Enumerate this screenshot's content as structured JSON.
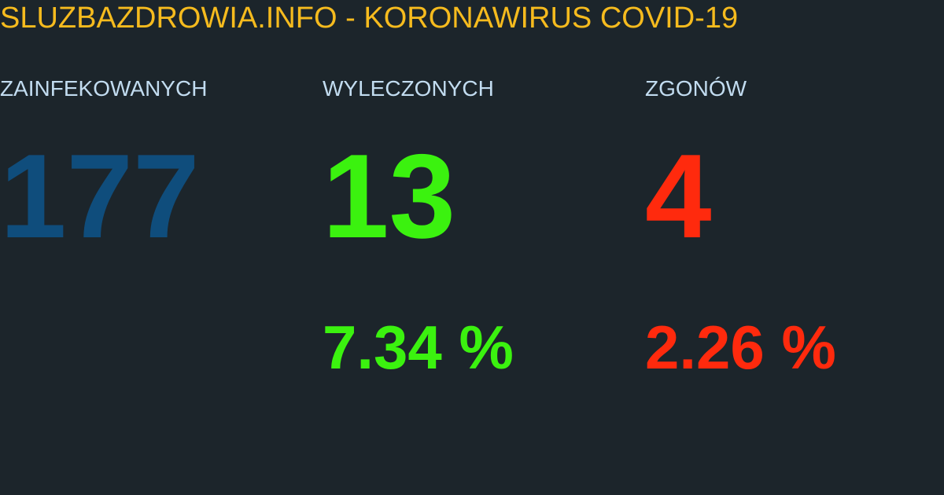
{
  "header": {
    "title": "SLUZBAZDROWIA.INFO - KORONAWIRUS COVID-19"
  },
  "stats": {
    "infected": {
      "label": "ZAINFEKOWANYCH",
      "count": "177",
      "color": "#0f4d7c"
    },
    "recovered": {
      "label": "WYLECZONYCH",
      "count": "13",
      "percent": "7.34 %",
      "color": "#3bf20f"
    },
    "deaths": {
      "label": "ZGONÓW",
      "count": "4",
      "percent": "2.26 %",
      "color": "#ff2a0d"
    }
  },
  "colors": {
    "background": "#1c252b",
    "title": "#f6bb1e",
    "label": "#c2dcf0"
  }
}
